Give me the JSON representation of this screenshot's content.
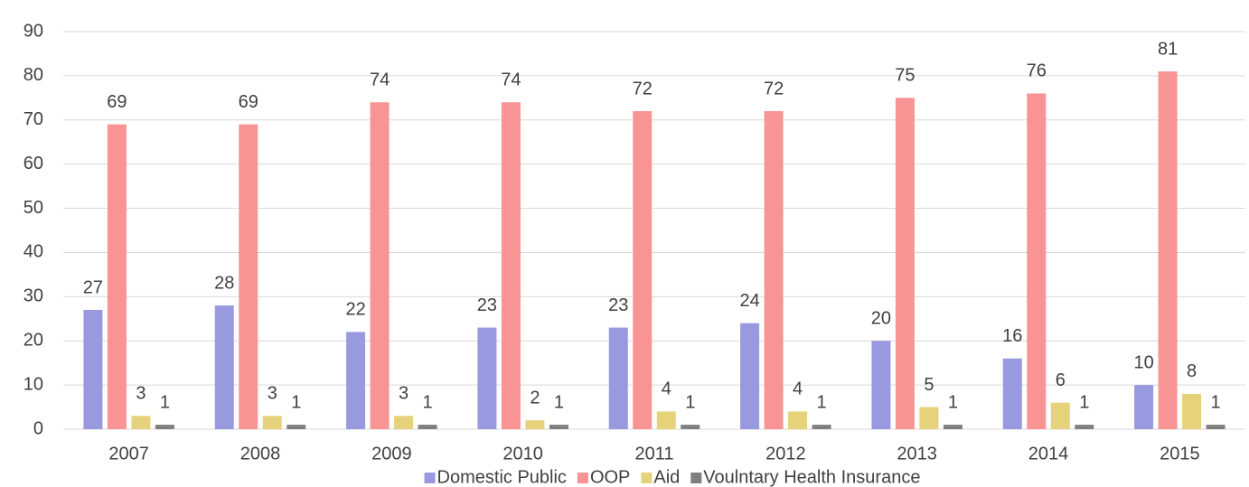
{
  "chart_data": {
    "type": "bar",
    "categories": [
      "2007",
      "2008",
      "2009",
      "2010",
      "2011",
      "2012",
      "2013",
      "2014",
      "2015"
    ],
    "series": [
      {
        "name": "Domestic Public",
        "color": "#9999e0",
        "values": [
          27,
          28,
          22,
          23,
          23,
          24,
          20,
          16,
          10
        ]
      },
      {
        "name": "OOP",
        "color": "#f99494",
        "values": [
          69,
          69,
          74,
          74,
          72,
          72,
          75,
          76,
          81
        ]
      },
      {
        "name": "Aid",
        "color": "#e6d27a",
        "values": [
          3,
          3,
          3,
          2,
          4,
          4,
          5,
          6,
          8
        ]
      },
      {
        "name": "Voulntary Health Insurance",
        "color": "#7f7f7f",
        "values": [
          1,
          1,
          1,
          1,
          1,
          1,
          1,
          1,
          1
        ]
      }
    ],
    "ylim": [
      0,
      90
    ],
    "yticks": [
      0,
      10,
      20,
      30,
      40,
      50,
      60,
      70,
      80,
      90
    ],
    "grid": true,
    "legend": "bottom"
  }
}
